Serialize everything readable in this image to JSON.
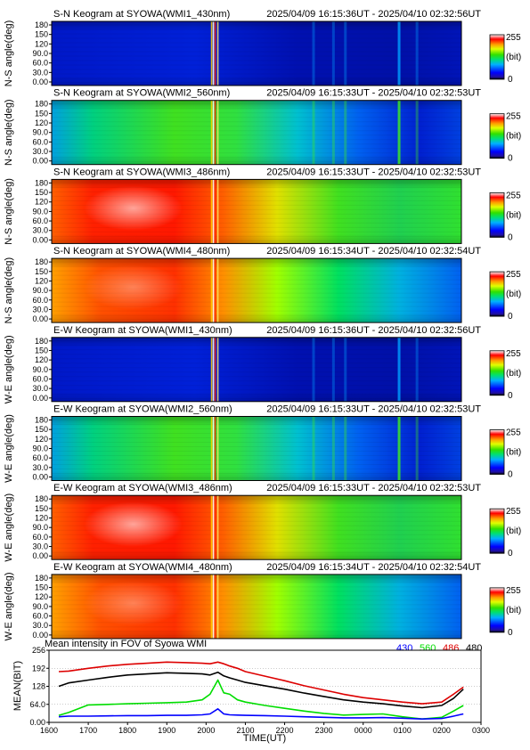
{
  "keograms": [
    {
      "title": "S-N Keogram at SYOWA(WMI1_430nm)",
      "period": "2025/04/09 16:15:36UT - 2025/04/10 02:32:56UT",
      "ylabel": "N-S angle(deg)",
      "profile": "dim"
    },
    {
      "title": "S-N Keogram at SYOWA(WMI2_560nm)",
      "period": "2025/04/09 16:15:33UT - 2025/04/10 02:32:53UT",
      "ylabel": "N-S angle(deg)",
      "profile": "medium"
    },
    {
      "title": "S-N Keogram at SYOWA(WMI3_486nm)",
      "period": "2025/04/09 16:15:33UT - 2025/04/10 02:32:53UT",
      "ylabel": "N-S angle(deg)",
      "profile": "bright"
    },
    {
      "title": "S-N Keogram at SYOWA(WMI4_480nm)",
      "period": "2025/04/09 16:15:34UT - 2025/04/10 02:32:54UT",
      "ylabel": "N-S angle(deg)",
      "profile": "bright2"
    },
    {
      "title": "E-W Keogram at SYOWA(WMI1_430nm)",
      "period": "2025/04/09 16:15:36UT - 2025/04/10 02:32:56UT",
      "ylabel": "W-E angle(deg)",
      "profile": "dim"
    },
    {
      "title": "E-W Keogram at SYOWA(WMI2_560nm)",
      "period": "2025/04/09 16:15:33UT - 2025/04/10 02:32:53UT",
      "ylabel": "W-E angle(deg)",
      "profile": "medium"
    },
    {
      "title": "E-W Keogram at SYOWA(WMI3_486nm)",
      "period": "2025/04/09 16:15:33UT - 2025/04/10 02:32:53UT",
      "ylabel": "W-E angle(deg)",
      "profile": "bright"
    },
    {
      "title": "E-W Keogram at SYOWA(WMI4_480nm)",
      "period": "2025/04/09 16:15:34UT - 2025/04/10 02:32:54UT",
      "ylabel": "W-E angle(deg)",
      "profile": "bright2"
    }
  ],
  "keogram_yticks": [
    "180",
    "150",
    "120",
    "90.0",
    "60.0",
    "30.0",
    "0.00"
  ],
  "colorbar": {
    "max": "255",
    "unit": "(bit)",
    "min": "0"
  },
  "chart_data": {
    "type": "line",
    "title": "Mean intensity in FOV of Syowa WMI",
    "xlabel": "TIME(UT)",
    "ylabel": "MEAN(BIT)",
    "xticks": [
      "1600",
      "1700",
      "1800",
      "1900",
      "2000",
      "2100",
      "2200",
      "2300",
      "0000",
      "0100",
      "0200",
      "0300"
    ],
    "yticks": [
      "256",
      "192",
      "128",
      "64.0",
      "0.00"
    ],
    "xlim": [
      16.0,
      27.0
    ],
    "ylim": [
      0,
      256
    ],
    "legend_placement": "top-right",
    "x": [
      16.25,
      16.5,
      17.0,
      17.5,
      18.0,
      18.5,
      19.0,
      19.5,
      19.9,
      20.1,
      20.3,
      20.45,
      20.6,
      20.8,
      21.0,
      21.5,
      22.0,
      22.5,
      23.0,
      23.5,
      24.0,
      24.5,
      25.0,
      25.5,
      26.0,
      26.3,
      26.55
    ],
    "series": [
      {
        "name": "430",
        "color": "#0000ff",
        "values": [
          20,
          22,
          22,
          23,
          24,
          24,
          25,
          25,
          27,
          30,
          48,
          30,
          27,
          26,
          25,
          24,
          22,
          20,
          18,
          16,
          16,
          17,
          15,
          12,
          14,
          22,
          30
        ]
      },
      {
        "name": "560",
        "color": "#00dd00",
        "values": [
          25,
          35,
          62,
          64,
          66,
          68,
          70,
          72,
          80,
          100,
          150,
          105,
          100,
          80,
          72,
          60,
          50,
          40,
          32,
          26,
          28,
          30,
          20,
          12,
          18,
          40,
          60
        ]
      },
      {
        "name": "486",
        "color": "#dd0000",
        "values": [
          180,
          182,
          192,
          200,
          206,
          210,
          214,
          212,
          210,
          208,
          214,
          208,
          200,
          192,
          180,
          164,
          148,
          130,
          115,
          100,
          88,
          80,
          72,
          66,
          72,
          100,
          125
        ]
      },
      {
        "name": "480",
        "color": "#000000",
        "values": [
          128,
          140,
          150,
          160,
          168,
          172,
          176,
          174,
          172,
          168,
          178,
          165,
          158,
          150,
          142,
          130,
          118,
          104,
          92,
          80,
          72,
          66,
          58,
          52,
          60,
          85,
          118
        ]
      }
    ]
  }
}
